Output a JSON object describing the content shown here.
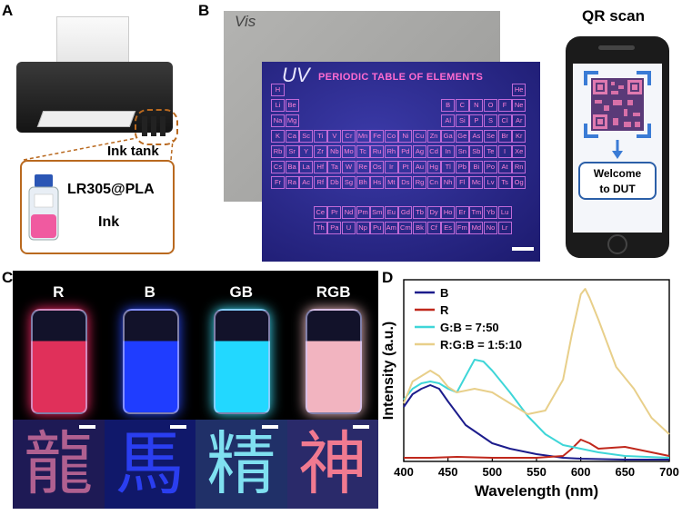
{
  "panel_labels": {
    "a": "A",
    "b": "B",
    "c": "C",
    "d": "D"
  },
  "panel_a": {
    "ink_tank_label": "Ink tank",
    "ink_name": "LR305@PLA",
    "ink_word": "Ink"
  },
  "panel_b": {
    "vis_label": "Vis",
    "uv_label": "UV",
    "table_title": "PERIODIC TABLE OF ELEMENTS",
    "qr_title": "QR scan",
    "welcome_line1": "Welcome",
    "welcome_line2": "to DUT",
    "elements": [
      [
        "H",
        "",
        "",
        "",
        "",
        "",
        "",
        "",
        "",
        "",
        "",
        "",
        "",
        "",
        "",
        "",
        "",
        "He"
      ],
      [
        "Li",
        "Be",
        "",
        "",
        "",
        "",
        "",
        "",
        "",
        "",
        "",
        "",
        "B",
        "C",
        "N",
        "O",
        "F",
        "Ne"
      ],
      [
        "Na",
        "Mg",
        "",
        "",
        "",
        "",
        "",
        "",
        "",
        "",
        "",
        "",
        "Al",
        "Si",
        "P",
        "S",
        "Cl",
        "Ar"
      ],
      [
        "K",
        "Ca",
        "Sc",
        "Ti",
        "V",
        "Cr",
        "Mn",
        "Fe",
        "Co",
        "Ni",
        "Cu",
        "Zn",
        "Ga",
        "Ge",
        "As",
        "Se",
        "Br",
        "Kr"
      ],
      [
        "Rb",
        "Sr",
        "Y",
        "Zr",
        "Nb",
        "Mo",
        "Tc",
        "Ru",
        "Rh",
        "Pd",
        "Ag",
        "Cd",
        "In",
        "Sn",
        "Sb",
        "Te",
        "I",
        "Xe"
      ],
      [
        "Cs",
        "Ba",
        "La",
        "Hf",
        "Ta",
        "W",
        "Re",
        "Os",
        "Ir",
        "Pt",
        "Au",
        "Hg",
        "Tl",
        "Pb",
        "Bi",
        "Po",
        "At",
        "Rn"
      ],
      [
        "Fr",
        "Ra",
        "Ac",
        "Rf",
        "Db",
        "Sg",
        "Bh",
        "Hs",
        "Mt",
        "Ds",
        "Rg",
        "Cn",
        "Nh",
        "Fl",
        "Mc",
        "Lv",
        "Ts",
        "Og"
      ]
    ],
    "lanthanides": [
      "Ce",
      "Pr",
      "Nd",
      "Pm",
      "Sm",
      "Eu",
      "Gd",
      "Tb",
      "Dy",
      "Ho",
      "Er",
      "Tm",
      "Yb",
      "Lu"
    ],
    "actinides": [
      "Th",
      "Pa",
      "U",
      "Np",
      "Pu",
      "Am",
      "Cm",
      "Bk",
      "Cf",
      "Es",
      "Fm",
      "Md",
      "No",
      "Lr"
    ]
  },
  "panel_c": {
    "vials": [
      {
        "label": "R",
        "liquid": "#e0305a",
        "glow": "#ff2a6a"
      },
      {
        "label": "B",
        "liquid": "#1f3dff",
        "glow": "#2b4bff"
      },
      {
        "label": "GB",
        "liquid": "#22d8ff",
        "glow": "#3fe6ff"
      },
      {
        "label": "RGB",
        "liquid": "#f2b4c0",
        "glow": "#ffc8d0"
      }
    ],
    "characters": [
      {
        "char": "龍",
        "bg": "#1e1a55",
        "color": "#b06090"
      },
      {
        "char": "馬",
        "bg": "#10186a",
        "color": "#2a3ef0"
      },
      {
        "char": "精",
        "bg": "#203068",
        "color": "#7fe0f0"
      },
      {
        "char": "神",
        "bg": "#2a2a6a",
        "color": "#f07a90"
      }
    ]
  },
  "chart_data": {
    "type": "line",
    "xlabel": "Wavelength (nm)",
    "ylabel": "Intensity (a.u.)",
    "xlim": [
      400,
      700
    ],
    "xticks": [
      400,
      450,
      500,
      550,
      600,
      650,
      700
    ],
    "ylim": [
      0,
      1
    ],
    "legend_position": "top-left",
    "series": [
      {
        "name": "B",
        "color": "#1c1c8c",
        "x": [
          400,
          410,
          420,
          430,
          440,
          450,
          470,
          500,
          520,
          550,
          580,
          600,
          650,
          700
        ],
        "y": [
          0.3,
          0.37,
          0.4,
          0.42,
          0.4,
          0.33,
          0.2,
          0.1,
          0.07,
          0.04,
          0.02,
          0.015,
          0.01,
          0.01
        ]
      },
      {
        "name": "R",
        "color": "#c0281c",
        "x": [
          400,
          430,
          460,
          500,
          550,
          580,
          590,
          600,
          610,
          620,
          650,
          680,
          700
        ],
        "y": [
          0.02,
          0.02,
          0.025,
          0.02,
          0.02,
          0.03,
          0.07,
          0.12,
          0.1,
          0.07,
          0.08,
          0.05,
          0.03
        ]
      },
      {
        "name": "G:B = 7:50",
        "color": "#3fd6d8",
        "x": [
          400,
          410,
          420,
          430,
          440,
          450,
          460,
          470,
          480,
          490,
          500,
          520,
          540,
          560,
          580,
          600,
          620,
          650,
          700
        ],
        "y": [
          0.34,
          0.4,
          0.43,
          0.44,
          0.43,
          0.4,
          0.38,
          0.47,
          0.56,
          0.55,
          0.5,
          0.38,
          0.25,
          0.15,
          0.09,
          0.07,
          0.05,
          0.03,
          0.02
        ]
      },
      {
        "name": "R:G:B = 1:5:10",
        "color": "#e8cf8a",
        "x": [
          400,
          410,
          420,
          430,
          440,
          450,
          460,
          480,
          500,
          520,
          540,
          560,
          580,
          590,
          600,
          605,
          610,
          620,
          640,
          660,
          680,
          700
        ],
        "y": [
          0.32,
          0.44,
          0.47,
          0.5,
          0.47,
          0.41,
          0.38,
          0.4,
          0.38,
          0.32,
          0.26,
          0.28,
          0.45,
          0.7,
          0.92,
          0.95,
          0.9,
          0.78,
          0.52,
          0.4,
          0.24,
          0.15
        ]
      }
    ]
  }
}
